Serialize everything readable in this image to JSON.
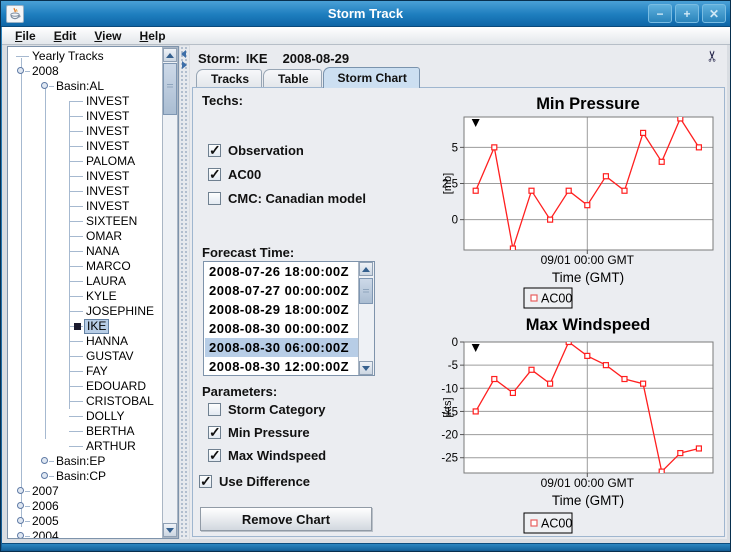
{
  "window": {
    "title": "Storm Track",
    "buttons": {
      "minimize": "−",
      "maximize": "+",
      "close": "✕"
    }
  },
  "menu": {
    "items": [
      {
        "label": "File",
        "mnemonic": "F"
      },
      {
        "label": "Edit",
        "mnemonic": "E"
      },
      {
        "label": "View",
        "mnemonic": "V"
      },
      {
        "label": "Help",
        "mnemonic": "H"
      }
    ]
  },
  "icons": {
    "app": "java-coffee-cup",
    "header_action": "scissors"
  },
  "colors": {
    "titlebar": "#1d7dbe",
    "selection": "#b7cde6",
    "series_line": "#ff1f1f",
    "tab_active": "#ccdff1"
  },
  "tree": {
    "items": [
      {
        "label": "Yearly Tracks",
        "depth": 0,
        "type": "root",
        "selected": false
      },
      {
        "label": "2008",
        "depth": 0,
        "type": "expanded",
        "selected": false
      },
      {
        "label": "Basin:AL",
        "depth": 1,
        "type": "expanded",
        "selected": false
      },
      {
        "label": "INVEST",
        "depth": 2,
        "type": "leaf",
        "selected": false
      },
      {
        "label": "INVEST",
        "depth": 2,
        "type": "leaf",
        "selected": false
      },
      {
        "label": "INVEST",
        "depth": 2,
        "type": "leaf",
        "selected": false
      },
      {
        "label": "INVEST",
        "depth": 2,
        "type": "leaf",
        "selected": false
      },
      {
        "label": "PALOMA",
        "depth": 2,
        "type": "leaf",
        "selected": false
      },
      {
        "label": "INVEST",
        "depth": 2,
        "type": "leaf",
        "selected": false
      },
      {
        "label": "INVEST",
        "depth": 2,
        "type": "leaf",
        "selected": false
      },
      {
        "label": "INVEST",
        "depth": 2,
        "type": "leaf",
        "selected": false
      },
      {
        "label": "SIXTEEN",
        "depth": 2,
        "type": "leaf",
        "selected": false
      },
      {
        "label": "OMAR",
        "depth": 2,
        "type": "leaf",
        "selected": false
      },
      {
        "label": "NANA",
        "depth": 2,
        "type": "leaf",
        "selected": false
      },
      {
        "label": "MARCO",
        "depth": 2,
        "type": "leaf",
        "selected": false
      },
      {
        "label": "LAURA",
        "depth": 2,
        "type": "leaf",
        "selected": false
      },
      {
        "label": "KYLE",
        "depth": 2,
        "type": "leaf",
        "selected": false
      },
      {
        "label": "JOSEPHINE",
        "depth": 2,
        "type": "leaf",
        "selected": false
      },
      {
        "label": "IKE",
        "depth": 2,
        "type": "leaf",
        "selected": true
      },
      {
        "label": "HANNA",
        "depth": 2,
        "type": "leaf",
        "selected": false
      },
      {
        "label": "GUSTAV",
        "depth": 2,
        "type": "leaf",
        "selected": false
      },
      {
        "label": "FAY",
        "depth": 2,
        "type": "leaf",
        "selected": false
      },
      {
        "label": "EDOUARD",
        "depth": 2,
        "type": "leaf",
        "selected": false
      },
      {
        "label": "CRISTOBAL",
        "depth": 2,
        "type": "leaf",
        "selected": false
      },
      {
        "label": "DOLLY",
        "depth": 2,
        "type": "leaf",
        "selected": false
      },
      {
        "label": "BERTHA",
        "depth": 2,
        "type": "leaf",
        "selected": false
      },
      {
        "label": "ARTHUR",
        "depth": 2,
        "type": "leaf",
        "selected": false
      },
      {
        "label": "Basin:EP",
        "depth": 1,
        "type": "collapsed",
        "selected": false
      },
      {
        "label": "Basin:CP",
        "depth": 1,
        "type": "collapsed",
        "selected": false
      },
      {
        "label": "2007",
        "depth": 0,
        "type": "collapsed",
        "selected": false
      },
      {
        "label": "2006",
        "depth": 0,
        "type": "collapsed",
        "selected": false
      },
      {
        "label": "2005",
        "depth": 0,
        "type": "collapsed",
        "selected": false
      },
      {
        "label": "2004",
        "depth": 0,
        "type": "collapsed",
        "selected": false
      }
    ]
  },
  "panel": {
    "storm_label": "Storm:",
    "storm_name": "IKE",
    "storm_date": "2008-08-29",
    "tabs": [
      {
        "label": "Tracks",
        "selected": false
      },
      {
        "label": "Table",
        "selected": false
      },
      {
        "label": "Storm Chart",
        "selected": true
      }
    ]
  },
  "controls": {
    "techs": {
      "label": "Techs:",
      "options": [
        {
          "label": "Observation",
          "checked": true
        },
        {
          "label": "AC00",
          "checked": true
        },
        {
          "label": "CMC: Canadian model",
          "checked": false
        }
      ]
    },
    "forecast": {
      "label": "Forecast Time:",
      "items": [
        "2008-07-26 18:00:00Z",
        "2008-07-27 00:00:00Z",
        "2008-08-29 18:00:00Z",
        "2008-08-30 00:00:00Z",
        "2008-08-30 06:00:00Z",
        "2008-08-30 12:00:00Z"
      ],
      "selected_index": 4
    },
    "parameters": {
      "label": "Parameters:",
      "options": [
        {
          "label": "Storm Category",
          "checked": false
        },
        {
          "label": "Min Pressure",
          "checked": true
        },
        {
          "label": "Max Windspeed",
          "checked": true
        }
      ]
    },
    "use_difference": {
      "label": "Use Difference",
      "checked": true
    },
    "remove_button": "Remove Chart"
  },
  "chart_data": [
    {
      "type": "line",
      "title": "Min Pressure",
      "ylabel": "[mb]",
      "xlabel": "Time (GMT)",
      "x": [
        0,
        1,
        2,
        3,
        4,
        5,
        6,
        7,
        8,
        9,
        10,
        11,
        12
      ],
      "series": [
        {
          "name": "AC00",
          "color": "#ff1f1f",
          "values": [
            2,
            5,
            -2,
            2,
            0,
            2,
            1,
            3,
            2,
            6,
            4,
            7,
            5
          ]
        }
      ],
      "yticks": [
        0,
        2.5,
        5
      ],
      "ylim": [
        -2.1,
        7.1
      ],
      "x_tick_label": "09/01 00:00 GMT",
      "x_tick_index": 6,
      "current_time_marker_index": 0,
      "grid": true,
      "legend": [
        "AC00"
      ],
      "legend_position": "bottom"
    },
    {
      "type": "line",
      "title": "Max Windspeed",
      "ylabel": "[kts]",
      "xlabel": "Time (GMT)",
      "x": [
        0,
        1,
        2,
        3,
        4,
        5,
        6,
        7,
        8,
        9,
        10,
        11,
        12
      ],
      "series": [
        {
          "name": "AC00",
          "color": "#ff1f1f",
          "values": [
            -15,
            -8,
            -11,
            -6,
            -9,
            0,
            -3,
            -5,
            -8,
            -9,
            -28,
            -24,
            -23
          ]
        }
      ],
      "yticks": [
        0,
        -5,
        -10,
        -15,
        -20,
        -25
      ],
      "ylim": [
        -28.3,
        0
      ],
      "x_tick_label": "09/01 00:00 GMT",
      "x_tick_index": 6,
      "current_time_marker_index": 0,
      "grid": true,
      "legend": [
        "AC00"
      ],
      "legend_position": "bottom"
    }
  ]
}
